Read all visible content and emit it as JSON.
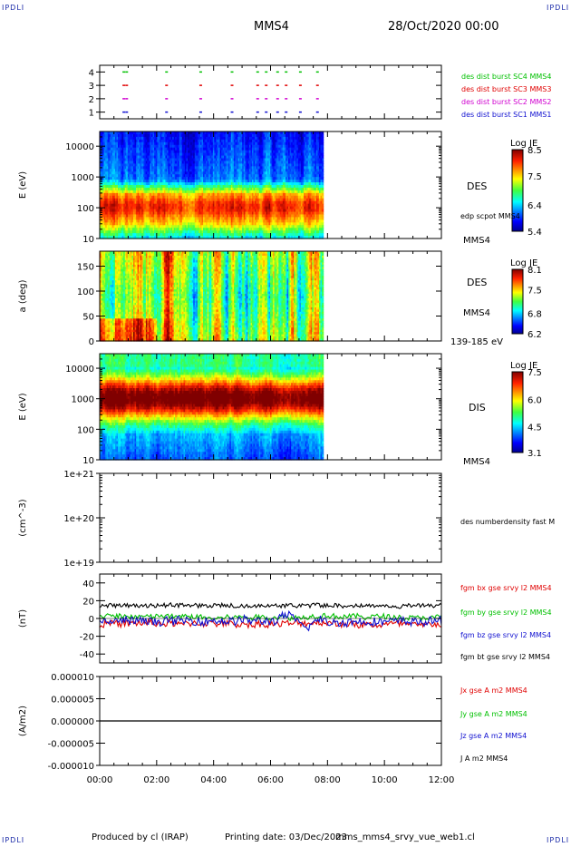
{
  "page": {
    "corner_left": "IPDLI",
    "corner_right": "IPDLI",
    "corner_bottom_left": "IPDLI",
    "corner_bottom_right": "IPDLI",
    "title": "MMS4",
    "datetime": "28/Oct/2020 00:00",
    "footer_left": "Produced by cl (IRAP)",
    "footer_mid": "Printing date: 03/Dec/2023",
    "footer_right": "mms_mms4_srvy_vue_web1.cl"
  },
  "colors": {
    "blue": "#1010d0",
    "green": "#00c000",
    "red": "#e00000",
    "magenta": "#d000d0",
    "black": "#000000"
  },
  "chart_data": [
    {
      "type": "scatter",
      "id": "burst",
      "ylabel": "",
      "yticks": [
        "1",
        "2",
        "3",
        "4"
      ],
      "ylim": [
        0.5,
        4.5
      ],
      "series": [
        {
          "name": "des dist burst SC1 MMS1",
          "color": "#1010d0",
          "y": 1,
          "x": [
            0.8,
            0.9,
            2.3,
            3.5,
            4.6,
            5.5,
            5.8,
            6.2,
            6.5,
            7.0,
            7.6
          ]
        },
        {
          "name": "des dist burst SC2 MMS2",
          "color": "#d000d0",
          "y": 2,
          "x": [
            0.8,
            0.9,
            2.3,
            3.5,
            4.6,
            5.5,
            5.8,
            6.2,
            6.5,
            7.0,
            7.6
          ]
        },
        {
          "name": "des dist burst SC3 MMS3",
          "color": "#e00000",
          "y": 3,
          "x": [
            0.8,
            0.9,
            2.3,
            3.5,
            4.6,
            5.5,
            5.8,
            6.2,
            6.5,
            7.0,
            7.6
          ]
        },
        {
          "name": "des dist burst SC4 MMS4",
          "color": "#00c000",
          "y": 4,
          "x": [
            0.8,
            0.9,
            2.3,
            3.5,
            4.6,
            5.5,
            5.8,
            6.2,
            6.5,
            7.0,
            7.6
          ]
        }
      ]
    },
    {
      "type": "heatmap",
      "id": "des_energy",
      "ylabel": "E (eV)",
      "yscale": "log",
      "yticks": [
        "10",
        "100",
        "1000",
        "10000"
      ],
      "ylim": [
        10,
        30000
      ],
      "instrument": "DES",
      "overlay_label": "edp scpot MMS4",
      "spacecraft_label": "MMS4",
      "colorbar": {
        "title": "Log JE",
        "ticks": [
          "8.5",
          "7.5",
          "6.4",
          "5.4"
        ],
        "range": [
          5.4,
          8.5
        ]
      },
      "data_end_hour": 7.85,
      "profile": "des_e"
    },
    {
      "type": "heatmap",
      "id": "des_pitch",
      "ylabel": "a (deg)",
      "yticks": [
        "0",
        "50",
        "100",
        "150"
      ],
      "ylim": [
        0,
        180
      ],
      "instrument": "DES",
      "spacecraft_label": "MMS4",
      "energy_range_label": "139-185 eV",
      "colorbar": {
        "title": "Log JE",
        "ticks": [
          "8.1",
          "7.5",
          "6.8",
          "6.2"
        ],
        "range": [
          6.2,
          8.1
        ]
      },
      "data_end_hour": 7.85,
      "profile": "des_pa"
    },
    {
      "type": "heatmap",
      "id": "dis_energy",
      "ylabel": "E (eV)",
      "yscale": "log",
      "yticks": [
        "10",
        "100",
        "1000",
        "10000"
      ],
      "ylim": [
        10,
        30000
      ],
      "instrument": "DIS",
      "spacecraft_label": "MMS4",
      "colorbar": {
        "title": "Log JE",
        "ticks": [
          "7.5",
          "6.0",
          "4.5",
          "3.1"
        ],
        "range": [
          3.1,
          7.5
        ]
      },
      "data_end_hour": 7.85,
      "profile": "dis_e"
    },
    {
      "type": "line",
      "id": "density",
      "ylabel": "(cm^-3)",
      "yscale": "log",
      "yticks": [
        "1e+19",
        "1e+20",
        "1e+21"
      ],
      "ylim": [
        1e+19,
        1e+21
      ],
      "series": [
        {
          "name": "des numberdensity fast M",
          "color": "#000000",
          "values": []
        }
      ]
    },
    {
      "type": "line",
      "id": "fgm",
      "ylabel": "(nT)",
      "yticks": [
        "-40",
        "-20",
        "0",
        "20",
        "40"
      ],
      "ylim": [
        -50,
        50
      ],
      "series": [
        {
          "name": "fgm bx gse srvy l2 MMS4",
          "color": "#e00000",
          "level": -6,
          "noise": 4
        },
        {
          "name": "fgm by gse srvy l2 MMS4",
          "color": "#00c000",
          "level": 2,
          "noise": 3
        },
        {
          "name": "fgm bz gse srvy l2 MMS4",
          "color": "#1010d0",
          "level": -3,
          "noise": 5
        },
        {
          "name": "fgm bt gse srvy l2 MMS4",
          "color": "#000000",
          "level": 12,
          "noise": 4
        }
      ]
    },
    {
      "type": "line",
      "id": "current",
      "ylabel": "(A/m2)",
      "yticks": [
        "-0.000010",
        "-0.000005",
        "0.000000",
        "0.000005",
        "0.000010"
      ],
      "ylim": [
        -1e-05,
        1e-05
      ],
      "series": [
        {
          "name": "Jx gse A m2 MMS4",
          "color": "#e00000",
          "level": 0
        },
        {
          "name": "Jy gse A m2 MMS4",
          "color": "#00c000",
          "level": 0
        },
        {
          "name": "Jz gse A m2 MMS4",
          "color": "#1010d0",
          "level": 0
        },
        {
          "name": "J A m2 MMS4",
          "color": "#000000",
          "level": 0
        }
      ]
    }
  ],
  "xaxis": {
    "ticks": [
      "00:00",
      "02:00",
      "04:00",
      "06:00",
      "08:00",
      "10:00",
      "12:00"
    ],
    "xlim": [
      0,
      12
    ]
  }
}
